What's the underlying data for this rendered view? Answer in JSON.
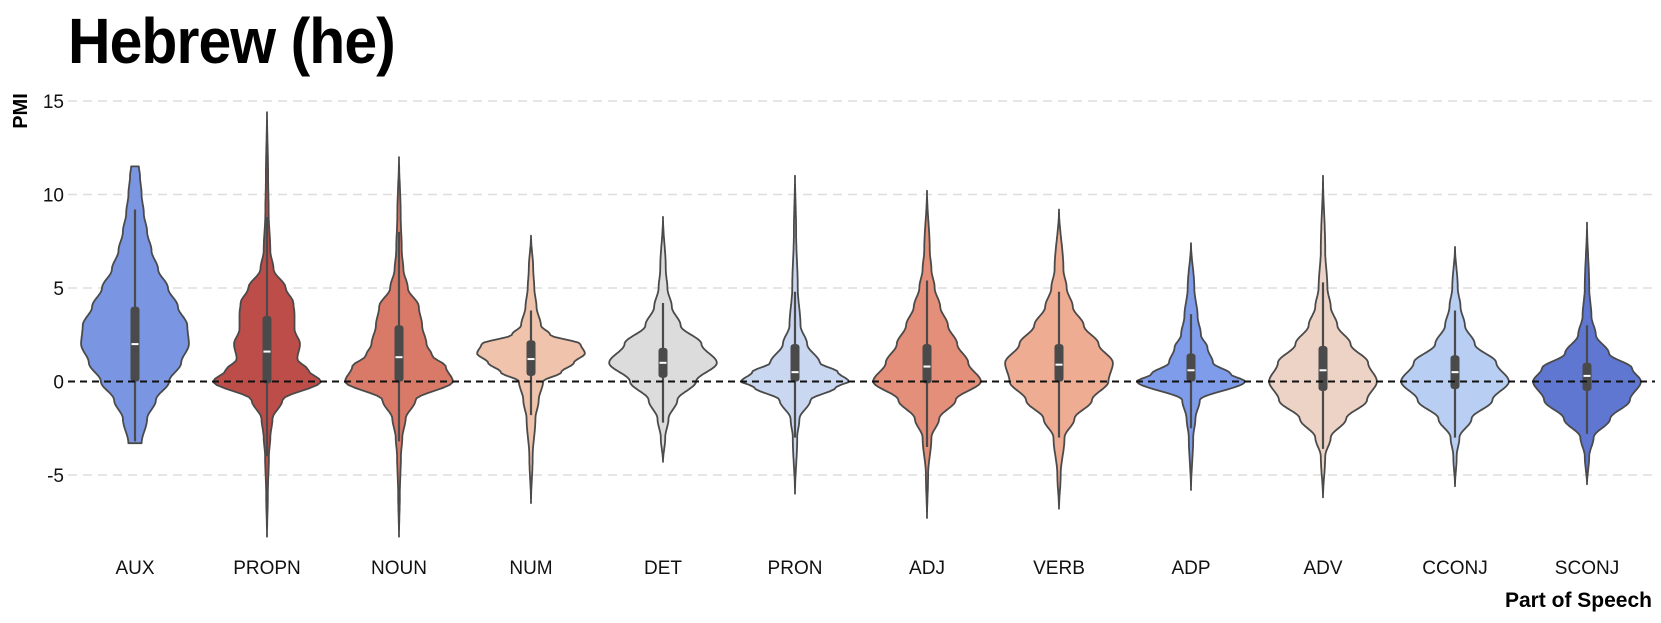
{
  "chart_data": {
    "type": "violin",
    "title": "Hebrew (he)",
    "xlabel": "Part of Speech",
    "ylabel": "PMI",
    "ylim": [
      -8.5,
      15.5
    ],
    "yticks": [
      -5,
      0,
      5,
      10,
      15
    ],
    "grid": true,
    "reference_line": 0,
    "categories": [
      "AUX",
      "PROPN",
      "NOUN",
      "NUM",
      "DET",
      "PRON",
      "ADJ",
      "VERB",
      "ADP",
      "ADV",
      "CCONJ",
      "SCONJ"
    ],
    "colors": [
      "#7a96e2",
      "#bd4d49",
      "#d97a68",
      "#f0c3ad",
      "#dcdcdc",
      "#c9d7f0",
      "#e48f79",
      "#eeac93",
      "#7f9cea",
      "#ecd3c6",
      "#b9cef3",
      "#5f77d1"
    ],
    "violins": [
      {
        "category": "AUX",
        "min": -3.3,
        "max": 11.5,
        "q1": 0.0,
        "median": 2.0,
        "q3": 4.0,
        "whisker_low": -3.2,
        "whisker_high": 9.2,
        "profile": [
          [
            -3.3,
            0.12
          ],
          [
            -2,
            0.22
          ],
          [
            -1,
            0.38
          ],
          [
            0,
            0.62
          ],
          [
            1,
            0.84
          ],
          [
            2,
            0.98
          ],
          [
            3,
            0.95
          ],
          [
            4,
            0.78
          ],
          [
            5,
            0.6
          ],
          [
            6,
            0.42
          ],
          [
            7,
            0.3
          ],
          [
            8,
            0.22
          ],
          [
            9,
            0.16
          ],
          [
            10,
            0.12
          ],
          [
            11,
            0.09
          ],
          [
            11.5,
            0.07
          ]
        ]
      },
      {
        "category": "PROPN",
        "min": -8.3,
        "max": 14.4,
        "q1": -0.1,
        "median": 1.6,
        "q3": 3.5,
        "whisker_low": -4.0,
        "whisker_high": 8.8,
        "profile": [
          [
            -8.3,
            0
          ],
          [
            -6,
            0.015
          ],
          [
            -4,
            0.035
          ],
          [
            -3,
            0.06
          ],
          [
            -2,
            0.1
          ],
          [
            -1,
            0.28
          ],
          [
            0,
            0.98
          ],
          [
            0.6,
            0.75
          ],
          [
            1.2,
            0.55
          ],
          [
            2,
            0.6
          ],
          [
            2.8,
            0.5
          ],
          [
            3.6,
            0.5
          ],
          [
            4.2,
            0.48
          ],
          [
            5,
            0.34
          ],
          [
            6,
            0.12
          ],
          [
            7,
            0.06
          ],
          [
            9,
            0.03
          ],
          [
            11,
            0.02
          ],
          [
            14.4,
            0
          ]
        ]
      },
      {
        "category": "NOUN",
        "min": -8.3,
        "max": 12.0,
        "q1": 0.0,
        "median": 1.3,
        "q3": 3.0,
        "whisker_low": -3.2,
        "whisker_high": 8.0,
        "profile": [
          [
            -8.3,
            0
          ],
          [
            -6,
            0.015
          ],
          [
            -4,
            0.035
          ],
          [
            -3,
            0.06
          ],
          [
            -2,
            0.12
          ],
          [
            -1,
            0.3
          ],
          [
            0,
            0.98
          ],
          [
            0.8,
            0.85
          ],
          [
            1.4,
            0.6
          ],
          [
            2,
            0.5
          ],
          [
            3,
            0.42
          ],
          [
            4,
            0.36
          ],
          [
            5,
            0.16
          ],
          [
            6,
            0.08
          ],
          [
            7,
            0.05
          ],
          [
            9,
            0.03
          ],
          [
            12,
            0
          ]
        ]
      },
      {
        "category": "NUM",
        "min": -6.5,
        "max": 7.8,
        "q1": 0.3,
        "median": 1.2,
        "q3": 2.2,
        "whisker_low": -1.8,
        "whisker_high": 3.8,
        "profile": [
          [
            -6.5,
            0
          ],
          [
            -4,
            0.03
          ],
          [
            -2,
            0.08
          ],
          [
            -1,
            0.14
          ],
          [
            0,
            0.22
          ],
          [
            0.5,
            0.55
          ],
          [
            1.0,
            0.78
          ],
          [
            1.5,
            0.98
          ],
          [
            2.0,
            0.9
          ],
          [
            2.5,
            0.35
          ],
          [
            3,
            0.18
          ],
          [
            4,
            0.1
          ],
          [
            5,
            0.06
          ],
          [
            6,
            0.04
          ],
          [
            7.8,
            0
          ]
        ]
      },
      {
        "category": "DET",
        "min": -4.3,
        "max": 8.8,
        "q1": 0.2,
        "median": 1.0,
        "q3": 1.8,
        "whisker_low": -2.2,
        "whisker_high": 4.2,
        "profile": [
          [
            -4.3,
            0
          ],
          [
            -3,
            0.04
          ],
          [
            -2,
            0.1
          ],
          [
            -1,
            0.26
          ],
          [
            0,
            0.6
          ],
          [
            1,
            0.98
          ],
          [
            2,
            0.7
          ],
          [
            3,
            0.32
          ],
          [
            4,
            0.16
          ],
          [
            5,
            0.08
          ],
          [
            6,
            0.05
          ],
          [
            8.8,
            0
          ]
        ]
      },
      {
        "category": "PRON",
        "min": -6.0,
        "max": 11.0,
        "q1": 0.0,
        "median": 0.5,
        "q3": 2.0,
        "whisker_low": -3.0,
        "whisker_high": 4.8,
        "profile": [
          [
            -6,
            0
          ],
          [
            -3,
            0.04
          ],
          [
            -2,
            0.08
          ],
          [
            -1,
            0.28
          ],
          [
            -0.3,
            0.75
          ],
          [
            0,
            0.98
          ],
          [
            0.5,
            0.78
          ],
          [
            1,
            0.45
          ],
          [
            2,
            0.22
          ],
          [
            3,
            0.1
          ],
          [
            5,
            0.05
          ],
          [
            8,
            0.02
          ],
          [
            11,
            0
          ]
        ]
      },
      {
        "category": "ADJ",
        "min": -7.3,
        "max": 10.2,
        "q1": -0.1,
        "median": 0.8,
        "q3": 2.0,
        "whisker_low": -3.5,
        "whisker_high": 5.4,
        "profile": [
          [
            -7.3,
            0
          ],
          [
            -5,
            0.02
          ],
          [
            -3,
            0.08
          ],
          [
            -2,
            0.22
          ],
          [
            -1,
            0.52
          ],
          [
            0,
            0.98
          ],
          [
            1,
            0.75
          ],
          [
            2,
            0.55
          ],
          [
            3,
            0.38
          ],
          [
            4,
            0.24
          ],
          [
            5,
            0.14
          ],
          [
            6,
            0.08
          ],
          [
            7,
            0.05
          ],
          [
            10.2,
            0
          ]
        ]
      },
      {
        "category": "VERB",
        "min": -6.8,
        "max": 9.2,
        "q1": 0.0,
        "median": 0.9,
        "q3": 2.0,
        "whisker_low": -3.0,
        "whisker_high": 4.8,
        "profile": [
          [
            -6.8,
            0
          ],
          [
            -5,
            0.03
          ],
          [
            -3,
            0.1
          ],
          [
            -2,
            0.28
          ],
          [
            -1,
            0.6
          ],
          [
            0,
            0.9
          ],
          [
            1,
            0.98
          ],
          [
            2,
            0.72
          ],
          [
            3,
            0.45
          ],
          [
            4,
            0.25
          ],
          [
            5,
            0.14
          ],
          [
            6,
            0.08
          ],
          [
            9.2,
            0
          ]
        ]
      },
      {
        "category": "ADP",
        "min": -5.8,
        "max": 7.4,
        "q1": 0.0,
        "median": 0.6,
        "q3": 1.5,
        "whisker_low": -2.5,
        "whisker_high": 3.6,
        "profile": [
          [
            -5.8,
            0
          ],
          [
            -3,
            0.04
          ],
          [
            -2,
            0.08
          ],
          [
            -1,
            0.16
          ],
          [
            0,
            0.98
          ],
          [
            0.4,
            0.72
          ],
          [
            1,
            0.4
          ],
          [
            1.8,
            0.3
          ],
          [
            2.5,
            0.18
          ],
          [
            3.5,
            0.12
          ],
          [
            5,
            0.06
          ],
          [
            7.4,
            0
          ]
        ]
      },
      {
        "category": "ADV",
        "min": -6.2,
        "max": 11.0,
        "q1": -0.5,
        "median": 0.6,
        "q3": 1.9,
        "whisker_low": -3.6,
        "whisker_high": 5.3,
        "profile": [
          [
            -6.2,
            0
          ],
          [
            -4,
            0.04
          ],
          [
            -3,
            0.14
          ],
          [
            -2,
            0.42
          ],
          [
            -1,
            0.8
          ],
          [
            0,
            0.98
          ],
          [
            1,
            0.82
          ],
          [
            2,
            0.5
          ],
          [
            3,
            0.26
          ],
          [
            4,
            0.14
          ],
          [
            5,
            0.08
          ],
          [
            7,
            0.04
          ],
          [
            11,
            0
          ]
        ]
      },
      {
        "category": "CCONJ",
        "min": -5.6,
        "max": 7.2,
        "q1": -0.4,
        "median": 0.5,
        "q3": 1.4,
        "whisker_low": -3.0,
        "whisker_high": 3.8,
        "profile": [
          [
            -5.6,
            0
          ],
          [
            -4,
            0.03
          ],
          [
            -3,
            0.08
          ],
          [
            -2,
            0.3
          ],
          [
            -1,
            0.68
          ],
          [
            0,
            0.98
          ],
          [
            1,
            0.75
          ],
          [
            2,
            0.36
          ],
          [
            3,
            0.18
          ],
          [
            4,
            0.1
          ],
          [
            5,
            0.05
          ],
          [
            7.2,
            0
          ]
        ]
      },
      {
        "category": "SCONJ",
        "min": -5.5,
        "max": 8.5,
        "q1": -0.5,
        "median": 0.3,
        "q3": 1.0,
        "whisker_low": -2.8,
        "whisker_high": 3.0,
        "profile": [
          [
            -5.5,
            0
          ],
          [
            -4,
            0.04
          ],
          [
            -3,
            0.12
          ],
          [
            -2,
            0.42
          ],
          [
            -1,
            0.78
          ],
          [
            0,
            0.98
          ],
          [
            0.7,
            0.82
          ],
          [
            1.5,
            0.4
          ],
          [
            2.5,
            0.16
          ],
          [
            3.5,
            0.08
          ],
          [
            5,
            0.04
          ],
          [
            8.5,
            0
          ]
        ]
      }
    ]
  }
}
